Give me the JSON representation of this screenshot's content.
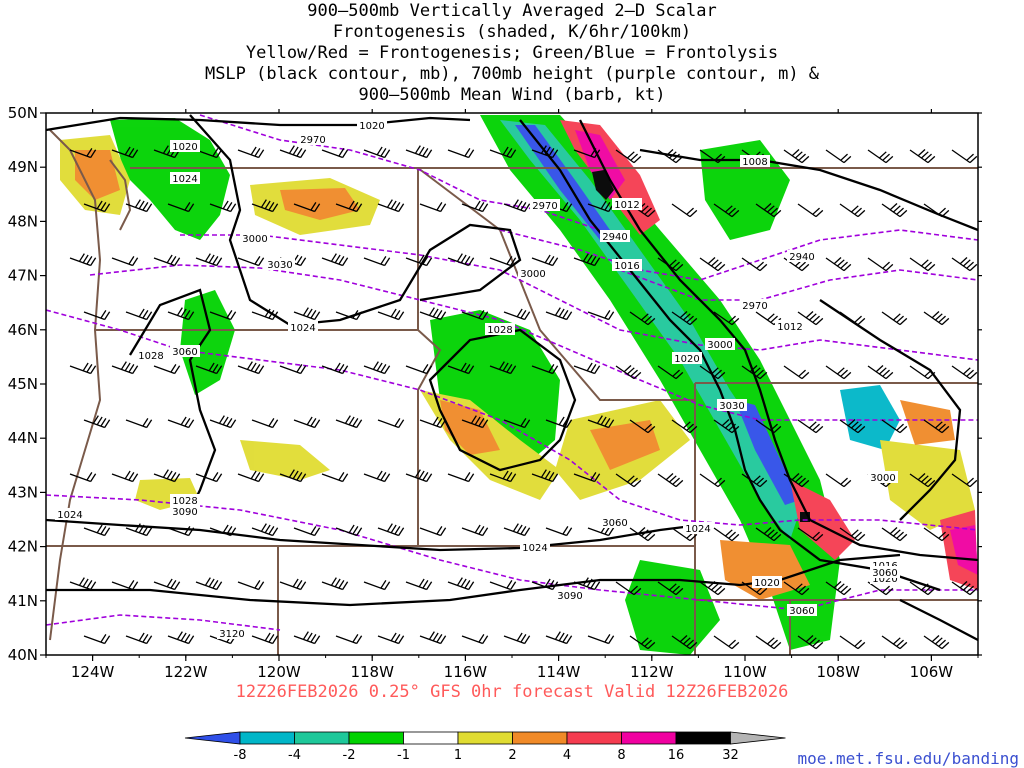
{
  "title": {
    "lines": [
      "900–500mb Vertically Averaged 2–D Scalar",
      "Frontogenesis (shaded, K/6hr/100km)",
      "Yellow/Red = Frontogenesis;  Green/Blue = Frontolysis",
      "MSLP (black contour, mb), 700mb height (purple contour, m) &",
      "900–500mb Mean Wind (barb, kt)"
    ]
  },
  "axes": {
    "lat_labels": [
      "50N",
      "49N",
      "48N",
      "47N",
      "46N",
      "45N",
      "44N",
      "43N",
      "42N",
      "41N",
      "40N"
    ],
    "lon_labels": [
      "124W",
      "122W",
      "120W",
      "118W",
      "116W",
      "114W",
      "112W",
      "110W",
      "108W",
      "106W"
    ],
    "lat_range": [
      40,
      50
    ],
    "lon_range": [
      -125,
      -105
    ]
  },
  "contour_labels": {
    "mslp": [
      "1020",
      "1020",
      "1024",
      "1024",
      "1028",
      "1028",
      "1028",
      "1024",
      "1024",
      "1020",
      "1012",
      "1016",
      "1020",
      "1012",
      "1008",
      "1016",
      "1024",
      "1020"
    ],
    "height": [
      "2970",
      "3000",
      "3030",
      "3060",
      "2970",
      "2940",
      "3000",
      "2970",
      "3000",
      "2940",
      "3030",
      "3060",
      "3090",
      "3120",
      "3000",
      "3090",
      "3060",
      "3060"
    ]
  },
  "footer": {
    "valid_text": "12Z26FEB2026 0.25° GFS 0hr forecast Valid 12Z26FEB2026",
    "url": "moe.met.fsu.edu/banding"
  },
  "colorbar": {
    "labels": [
      "-8",
      "-4",
      "-2",
      "-1",
      "1",
      "2",
      "4",
      "8",
      "16",
      "32"
    ],
    "colors": [
      "#2f4fe8",
      "#00b6c8",
      "#1ec89a",
      "#00d200",
      "#ffffff",
      "#e0dc32",
      "#f08a28",
      "#f53c50",
      "#f000a0",
      "#000000",
      "#b4b4b4"
    ]
  },
  "colors": {
    "mslp_contour": "#000000",
    "height_contour": "#a000dc",
    "border": "#7a5a4a",
    "frontogenesis": "#f53c50",
    "frontolysis": "#00d200"
  }
}
